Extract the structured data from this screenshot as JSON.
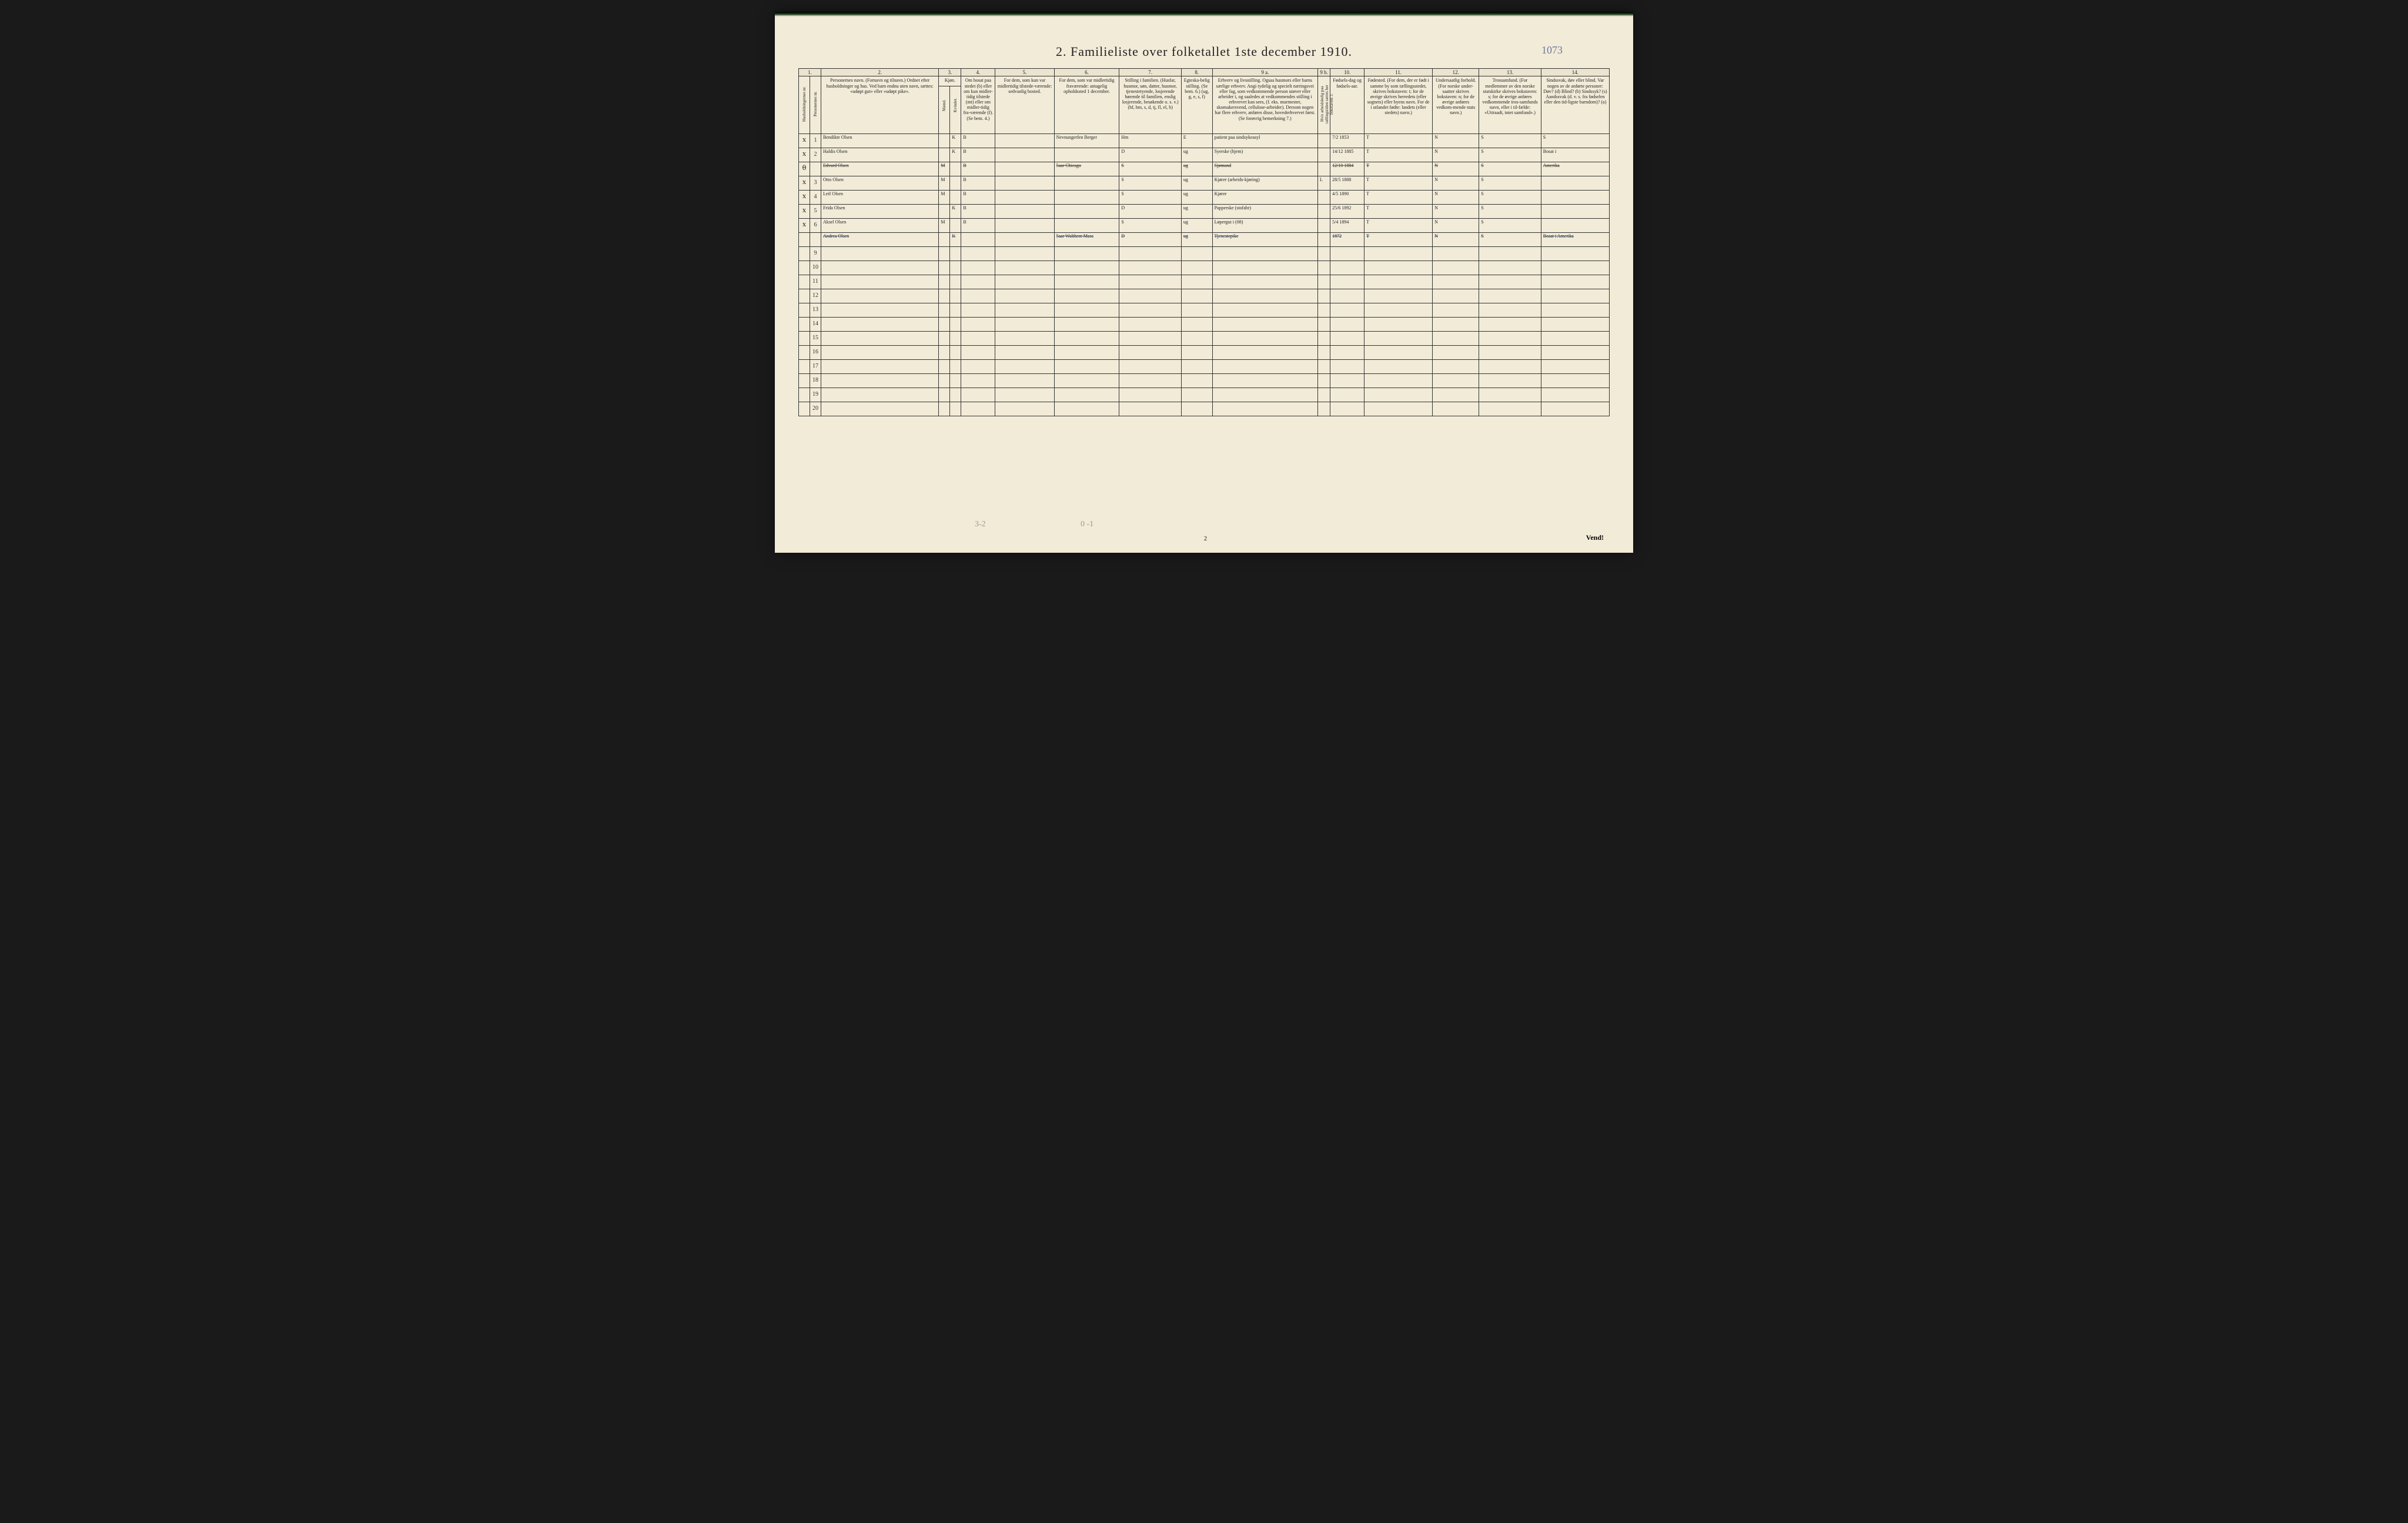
{
  "title": "2.  Familieliste over folketallet 1ste december 1910.",
  "page_note": "1073",
  "footer": "Vend!",
  "pagenum": "2",
  "pencil_left": "3-2",
  "pencil_mid": "0 -1",
  "colnums": [
    "1.",
    "2.",
    "3.",
    "4.",
    "5.",
    "6.",
    "7.",
    "8.",
    "9 a.",
    "9 b.",
    "10.",
    "11.",
    "12.",
    "13.",
    "14."
  ],
  "headers": {
    "c1a": "Husholdningernes nr.",
    "c1b": "Personernes nr.",
    "c2": "Personernes navn.\n(Fornavn og tilnavn.)\nOrdnet efter husholdninger og hus.\nVed barn endnu uten navn, sættes: «udøpt gut» eller «udøpt pike».",
    "c3": "Kjøn.",
    "c3a": "Mænd.",
    "c3b": "Kvinder.",
    "c4": "Om bosat paa stedet (b) eller om kun midler-tidig tilstede (mt) eller om midler-tidig fra-værende (f). (Se bem. 4.)",
    "c5": "For dem, som kun var midlertidig tilstede-værende:\nsedvanlig bosted.",
    "c6": "For dem, som var midlertidig fraværende:\nantagelig opholdssted 1 december.",
    "c7": "Stilling i familien.\n(Husfar, husmor, søn, datter, husmor, tjenestetyende, losjerende hørende til familien, enslig losjerende, besøkende o. s. v.)\n(hf, hm, s, d, tj, fl, el, b)",
    "c8": "Egteska-belig stilling.\n(Se bem. 6.)\n(ug, g, e, s, f)",
    "c9a": "Erhverv og livsstilling.\nOgsaa husmors eller barns særlige erhverv. Angi tydelig og specielt næringsvei eller fag, som vedkommende person utøver eller arbeider i, og saaledes at vedkommendes stilling i erhvervet kan sees, (f. eks. murmester, skomakersvend, cellulose-arbeider). Dersom nogen har flere erhverv, anføres disse, hovederhvervet først. (Se forøvrig bemerkning 7.)",
    "c9b": "Hvis arbeidsledig paa tællingstiden sættes her bokstaven: l.",
    "c10": "Fødsels-dag og fødsels-aar.",
    "c11": "Fødested.\n(For dem, der er født i samme by som tællingsstedet, skrives bokstaven: t; for de øvrige skrives herredets (eller sognets) eller byens navn. For de i utlandet fødte: landets (eller stedets) navn.)",
    "c12": "Undersaatlig forhold.\n(For norske under-saatter skrives bokstaven: n; for de øvrige anføres vedkom-mende stats navn.)",
    "c13": "Trossamfund.\n(For medlemmer av den norske statskirke skrives bokstaven: s; for de øvrige anføres vedkommende tros-samfunds navn, eller i til-fælde: «Uttraadt, intet samfund».)",
    "c14": "Sindssvak, døv eller blind.\nVar nogen av de anførte personer:\nDøv? (d)\nBlind? (b)\nSindssyk? (s)\nAandssvak (d. v. s. fra fødselen eller den tid-ligste barndom)? (a)"
  },
  "rows": [
    {
      "n": "1",
      "mark": "x",
      "name": "Bendikte Olsen",
      "mk": "",
      "kv": "K",
      "bmt": "B",
      "c5": "",
      "c6": "Nevnungerfen Berger",
      "c7": "Hm",
      "c8": "E",
      "c9a": "patient paa sindsykeasyl",
      "c9b": "",
      "c10": "7/2 1853",
      "c11": "T",
      "c12": "N",
      "c13": "S",
      "c14": "S"
    },
    {
      "n": "2",
      "mark": "x",
      "name": "Haldis Olsen",
      "mk": "",
      "kv": "K",
      "bmt": "B",
      "c5": "",
      "c6": "",
      "c7": "D",
      "c8": "ug",
      "c9a": "Syerske (hjem)",
      "c9b": "",
      "c10": "14/12 1885",
      "c11": "T",
      "c12": "N",
      "c13": "S",
      "c14": "Bosat i"
    },
    {
      "n": "",
      "mark": "0",
      "name": "Edvard Olsen",
      "mk": "M",
      "kv": "",
      "bmt": "B",
      "c5": "",
      "c6": "5aar Chicago",
      "c7": "S",
      "c8": "ug",
      "c9a": "Sjømand",
      "c9b": "",
      "c10": "12/10 1884",
      "c11": "T",
      "c12": "N",
      "c13": "S",
      "c14": "Amerika",
      "struck": true
    },
    {
      "n": "3",
      "mark": "x",
      "name": "Otto Olsen",
      "mk": "M",
      "kv": "",
      "bmt": "B",
      "c5": "",
      "c6": "",
      "c7": "S",
      "c8": "ug",
      "c9a": "Kjører (arbeids-kjøring)",
      "c9b": "L",
      "c10": "28/5 1888",
      "c11": "T",
      "c12": "N",
      "c13": "S",
      "c14": ""
    },
    {
      "n": "4",
      "mark": "x",
      "name": "Leif Olsen",
      "mk": "M",
      "kv": "",
      "bmt": "B",
      "c5": "",
      "c6": "",
      "c7": "S",
      "c8": "ug",
      "c9a": "Kjører",
      "c9b": "",
      "c10": "4/5 1890",
      "c11": "T",
      "c12": "N",
      "c13": "S",
      "c14": ""
    },
    {
      "n": "5",
      "mark": "x",
      "name": "Frida Olsen",
      "mk": "",
      "kv": "K",
      "bmt": "B",
      "c5": "",
      "c6": "",
      "c7": "D",
      "c8": "ug",
      "c9a": "Papperske (stofabr)",
      "c9b": "",
      "c10": "25/6 1892",
      "c11": "T",
      "c12": "N",
      "c13": "S",
      "c14": ""
    },
    {
      "n": "6",
      "mark": "x",
      "name": "Aksel Olsen",
      "mk": "M",
      "kv": "",
      "bmt": "B",
      "c5": "",
      "c6": "",
      "c7": "S",
      "c8": "ug",
      "c9a": "Løpergut i (08)",
      "c9b": "",
      "c10": "5/4 1894",
      "c11": "T",
      "c12": "N",
      "c13": "S",
      "c14": ""
    },
    {
      "n": "",
      "mark": "",
      "name": "Andrea Olsen",
      "mk": "",
      "kv": "K",
      "bmt": "",
      "c5": "",
      "c6": "5aar Walthem Mass",
      "c7": "D",
      "c8": "ug",
      "c9a": "Tjenestepike",
      "c9b": "",
      "c10": "1872",
      "c11": "T",
      "c12": "N",
      "c13": "S",
      "c14": "Bosat i Amerika",
      "struck": true
    }
  ],
  "empty_rows": [
    "9",
    "10",
    "11",
    "12",
    "13",
    "14",
    "15",
    "16",
    "17",
    "18",
    "19",
    "20"
  ],
  "col_widths": {
    "c1a": 18,
    "c1b": 18,
    "c2": 190,
    "c3a": 18,
    "c3b": 18,
    "c4": 55,
    "c5": 95,
    "c6": 105,
    "c7": 100,
    "c8": 50,
    "c9a": 170,
    "c9b": 20,
    "c10": 55,
    "c11": 110,
    "c12": 75,
    "c13": 100,
    "c14": 110
  },
  "colors": {
    "paper": "#f2ebd8",
    "ink": "#222222",
    "pen": "#4a5a7a",
    "border": "#333333"
  }
}
